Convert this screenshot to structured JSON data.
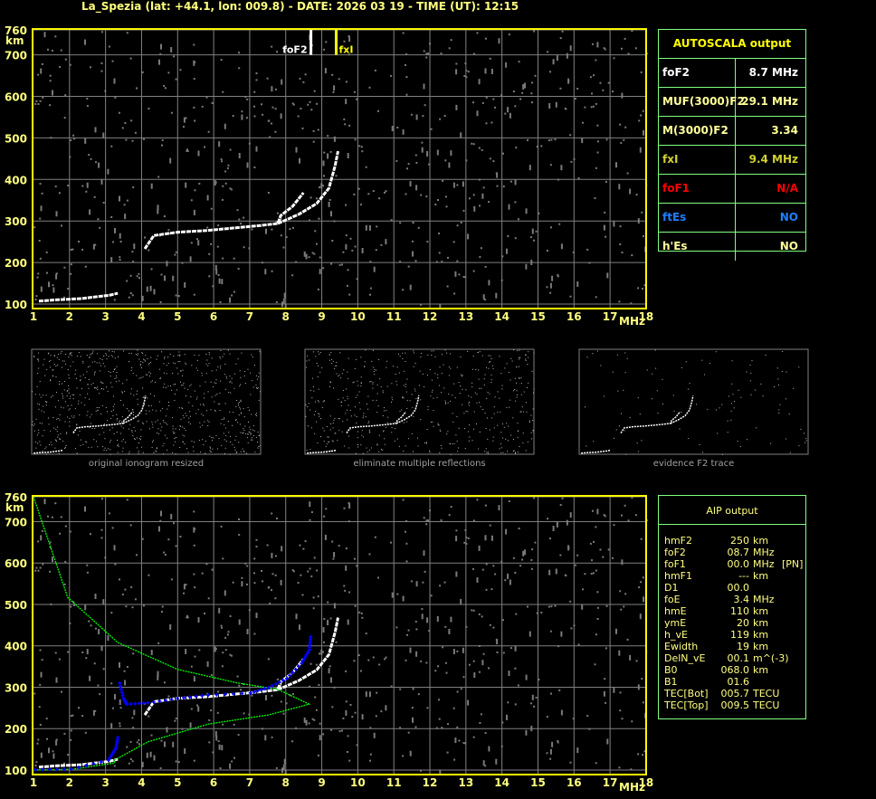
{
  "title": "La_Spezia (lat: +44.1, lon: 009.8) - DATE: 2026 03 19 - TIME (UT): 12:15",
  "colors": {
    "frame": "#ffff00",
    "grid": "#808080",
    "trace": "#ffffff",
    "profile": "#00ff00",
    "aip_trace": "#0000ff",
    "table_border": "#80ff80"
  },
  "axes": {
    "y_ticks": [
      "100",
      "200",
      "300",
      "400",
      "500",
      "600",
      "700",
      "760"
    ],
    "y_unit": "km",
    "x_ticks": [
      "1",
      "2",
      "3",
      "4",
      "5",
      "6",
      "7",
      "8",
      "9",
      "10",
      "11",
      "12",
      "13",
      "14",
      "15",
      "16",
      "17",
      "18"
    ],
    "x_unit": "MHz"
  },
  "markers": {
    "foF2_label": "foF2",
    "foF2_value": 8.7,
    "fxI_label": "fxI",
    "fxI_value": 9.4
  },
  "thumbnails": [
    {
      "caption": "original ionogram resized"
    },
    {
      "caption": "eliminate multiple reflections"
    },
    {
      "caption": "evidence F2 trace"
    }
  ],
  "autoscala": {
    "title": "AUTOSCALA output",
    "rows": [
      {
        "key": "foF2",
        "value": "8.7 MHz",
        "color": "#ffffff"
      },
      {
        "key": "MUF(3000)F2",
        "value": "29.1 MHz",
        "color": "#ffff99"
      },
      {
        "key": "M(3000)F2",
        "value": "3.34",
        "color": "#ffff99"
      },
      {
        "key": "fxI",
        "value": "9.4 MHz",
        "color": "#d0d030"
      },
      {
        "key": "foF1",
        "value": "N/A",
        "color": "#ff0000"
      },
      {
        "key": "ftEs",
        "value": "NO",
        "color": "#1e7fff"
      },
      {
        "key": "h'Es",
        "value": "NO",
        "color": "#ffff99"
      }
    ]
  },
  "aip": {
    "title": "AIP output",
    "rows": [
      {
        "k": "hmF2",
        "v": "250",
        "u": "km",
        "x": ""
      },
      {
        "k": "foF2",
        "v": "08.7",
        "u": "MHz",
        "x": ""
      },
      {
        "k": "foF1",
        "v": "00.0",
        "u": "MHz",
        "x": "[PN]"
      },
      {
        "k": "hmF1",
        "v": "---",
        "u": "km",
        "x": ""
      },
      {
        "k": "D1",
        "v": "00.0",
        "u": "",
        "x": ""
      },
      {
        "k": "foE",
        "v": "3.4",
        "u": "MHz",
        "x": ""
      },
      {
        "k": "hmE",
        "v": "110",
        "u": "km",
        "x": ""
      },
      {
        "k": "ymE",
        "v": "20",
        "u": "km",
        "x": ""
      },
      {
        "k": "h_vE",
        "v": "119",
        "u": "km",
        "x": ""
      },
      {
        "k": "Ewidth",
        "v": "19",
        "u": "km",
        "x": ""
      },
      {
        "k": "DelN_vE",
        "v": "00.1",
        "u": "m^(-3)",
        "x": ""
      },
      {
        "k": "B0",
        "v": "068.0",
        "u": "km",
        "x": ""
      },
      {
        "k": "B1",
        "v": "01.6",
        "u": "",
        "x": ""
      },
      {
        "k": "TEC[Bot]",
        "v": "005.7",
        "u": "TECU",
        "x": ""
      },
      {
        "k": "TEC[Top]",
        "v": "009.5",
        "u": "TECU",
        "x": ""
      }
    ]
  },
  "chart_data": {
    "type": "scatter",
    "xlabel": "MHz",
    "ylabel": "km",
    "xlim": [
      1,
      18
    ],
    "ylim": [
      100,
      760
    ],
    "grid": true,
    "traces": {
      "E_trace": [
        [
          1.15,
          107
        ],
        [
          1.6,
          110
        ],
        [
          2.33,
          113
        ],
        [
          2.8,
          118
        ],
        [
          3.1,
          121
        ],
        [
          3.34,
          126
        ]
      ],
      "F2_O_trace": [
        [
          4.09,
          233
        ],
        [
          4.34,
          265
        ],
        [
          5.0,
          273
        ],
        [
          5.8,
          277
        ],
        [
          6.68,
          284
        ],
        [
          7.3,
          289
        ],
        [
          7.78,
          294
        ],
        [
          7.86,
          313
        ],
        [
          8.19,
          335
        ],
        [
          8.49,
          368
        ]
      ],
      "F2_X_trace": [
        [
          7.78,
          294
        ],
        [
          8.36,
          316
        ],
        [
          8.86,
          342
        ],
        [
          9.2,
          379
        ],
        [
          9.37,
          433
        ],
        [
          9.45,
          468
        ]
      ]
    },
    "aip_profile": [
      [
        1.0,
        760
      ],
      [
        1.95,
        517
      ],
      [
        3.34,
        408
      ],
      [
        5.0,
        343
      ],
      [
        6.68,
        310
      ],
      [
        7.78,
        295
      ],
      [
        8.65,
        259
      ],
      [
        7.52,
        233
      ],
      [
        5.85,
        211
      ],
      [
        4.17,
        168
      ],
      [
        3.25,
        124
      ],
      [
        3.25,
        117
      ],
      [
        2.08,
        102
      ],
      [
        1.0,
        100
      ]
    ],
    "aip_trace": [
      [
        1.05,
        101
      ],
      [
        2.05,
        102
      ],
      [
        3.08,
        124
      ],
      [
        3.29,
        153
      ],
      [
        3.34,
        178
      ],
      null,
      [
        3.39,
        310
      ],
      [
        3.5,
        273
      ],
      [
        3.59,
        259
      ],
      [
        4.17,
        262
      ],
      [
        5.0,
        273
      ],
      [
        5.85,
        281
      ],
      [
        7.02,
        286
      ],
      [
        7.52,
        299
      ],
      [
        8.03,
        321
      ],
      [
        8.44,
        358
      ],
      [
        8.66,
        391
      ],
      [
        8.69,
        421
      ]
    ]
  }
}
